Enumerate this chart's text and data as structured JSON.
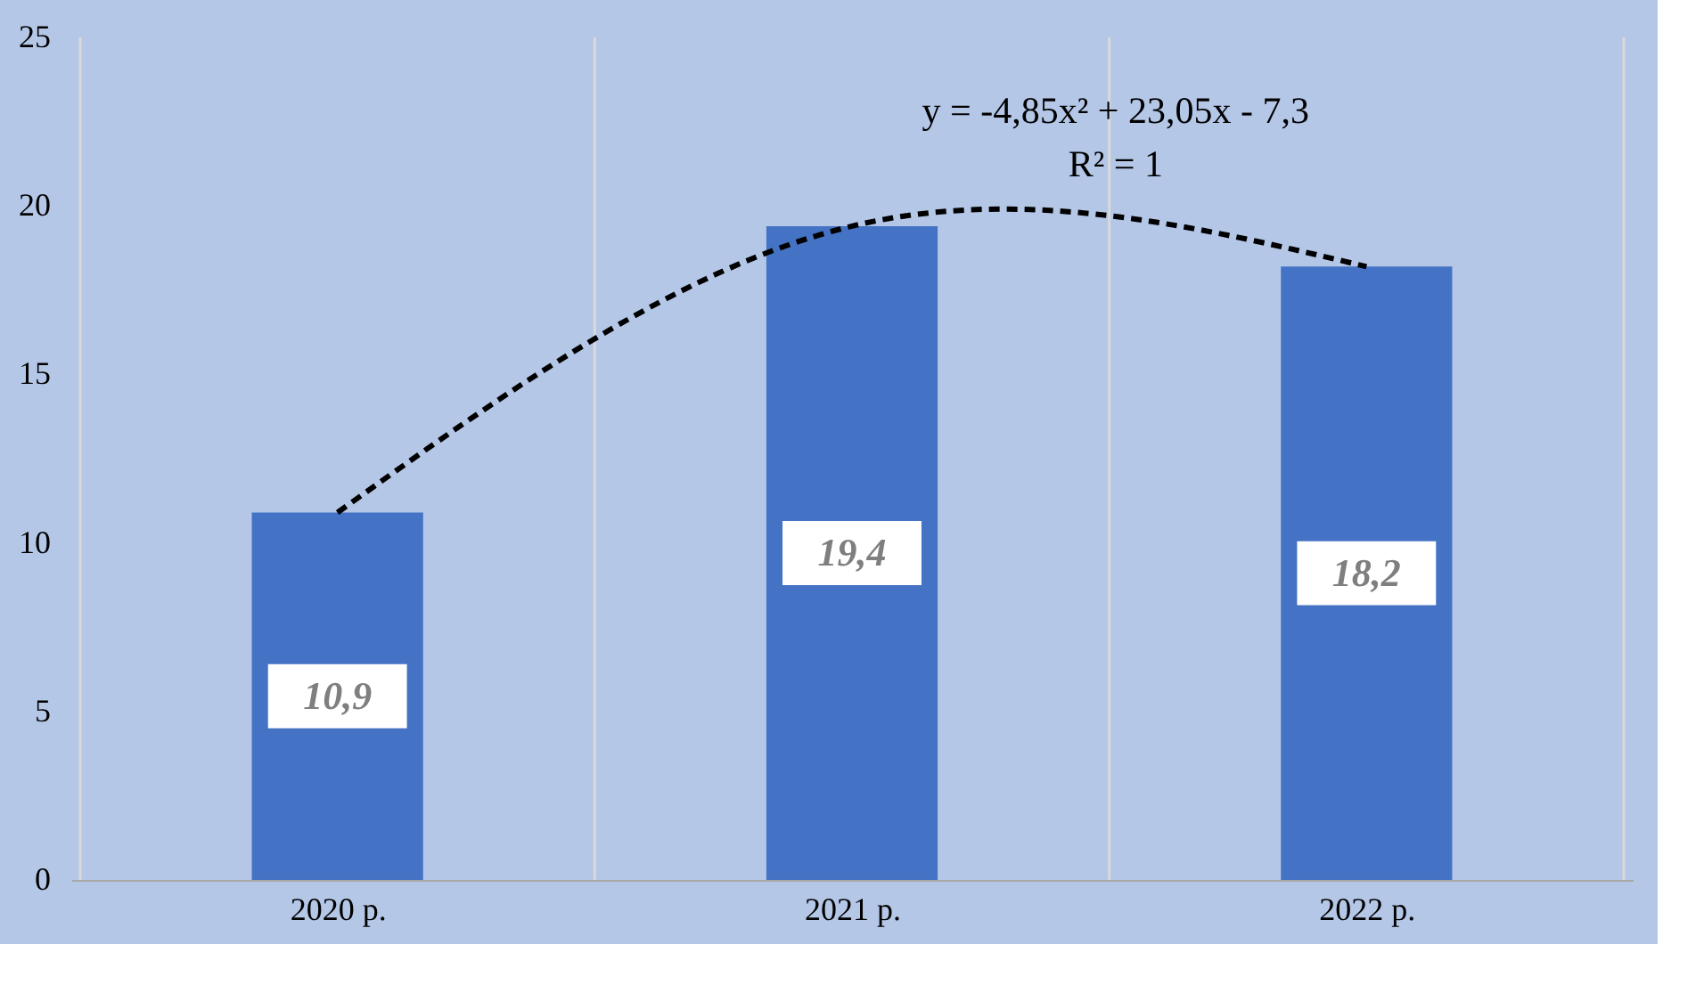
{
  "chart_data": {
    "type": "bar",
    "categories": [
      "2020 р.",
      "2021 р.",
      "2022 р."
    ],
    "series": [
      {
        "color": "#4472c4",
        "values": [
          10.9,
          19.4,
          18.2
        ],
        "value_labels": [
          "10,9",
          "19,4",
          "18,2"
        ]
      },
      {
        "type": "line",
        "color": "#000000",
        "line_style": "dashed",
        "marker": "none",
        "values": [
          10.9,
          19.4,
          18.2
        ]
      }
    ],
    "ylim": [
      0,
      25
    ],
    "yticks": [
      0,
      5,
      10,
      15,
      20,
      25
    ],
    "grid": "x",
    "legend": false,
    "annotations": [
      "y = -4,85x² + 23,05x - 7,3",
      "R² = 1"
    ]
  }
}
